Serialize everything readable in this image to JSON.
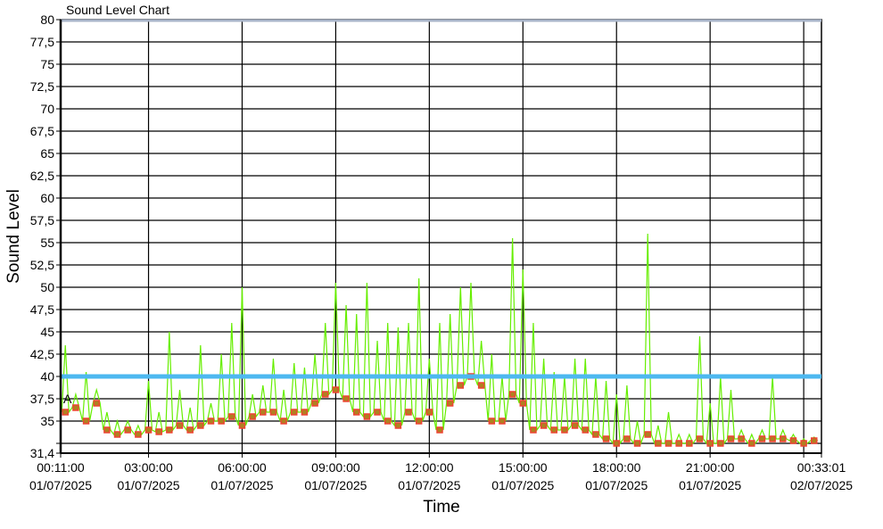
{
  "chart_data": {
    "type": "line",
    "title": "Sound Level Chart",
    "xlabel": "Time",
    "ylabel": "Sound Level",
    "ylim": [
      31.4,
      80
    ],
    "y_ticks": [
      "80",
      "77,5",
      "75",
      "72,5",
      "70",
      "67,5",
      "65",
      "62,5",
      "60",
      "57,5",
      "55",
      "52,5",
      "50",
      "47,5",
      "45",
      "42,5",
      "40",
      "37,5",
      "35",
      "31,4"
    ],
    "x_ticks": [
      {
        "time": "00:11:00",
        "date": "01/07/2025"
      },
      {
        "time": "03:00:00",
        "date": "01/07/2025"
      },
      {
        "time": "06:00:00",
        "date": "01/07/2025"
      },
      {
        "time": "09:00:00",
        "date": "01/07/2025"
      },
      {
        "time": "12:00:00",
        "date": "01/07/2025"
      },
      {
        "time": "15:00:00",
        "date": "01/07/2025"
      },
      {
        "time": "18:00:00",
        "date": "01/07/2025"
      },
      {
        "time": "21:00:00",
        "date": "01/07/2025"
      },
      {
        "time": "00:33:01",
        "date": "02/07/2025"
      }
    ],
    "grid": true,
    "threshold": {
      "value": 40,
      "color": "#4db8f0"
    },
    "upper_line": {
      "value": 80,
      "color": "#a8b4c8"
    },
    "annotation": {
      "text": "A",
      "time": "00:11",
      "value": 37
    },
    "colors": {
      "peak": "#66ee00",
      "level": "#ee4433",
      "level_fill": "#b08020"
    },
    "series": {
      "time": [
        "00:20",
        "00:40",
        "01:00",
        "01:20",
        "01:40",
        "02:00",
        "02:20",
        "02:40",
        "03:00",
        "03:20",
        "03:40",
        "04:00",
        "04:20",
        "04:40",
        "05:00",
        "05:20",
        "05:40",
        "06:00",
        "06:20",
        "06:40",
        "07:00",
        "07:20",
        "07:40",
        "08:00",
        "08:20",
        "08:40",
        "09:00",
        "09:20",
        "09:40",
        "10:00",
        "10:20",
        "10:40",
        "11:00",
        "11:20",
        "11:40",
        "12:00",
        "12:20",
        "12:40",
        "13:00",
        "13:20",
        "13:40",
        "14:00",
        "14:20",
        "14:40",
        "15:00",
        "15:20",
        "15:40",
        "16:00",
        "16:20",
        "16:40",
        "17:00",
        "17:20",
        "17:40",
        "18:00",
        "18:20",
        "18:40",
        "19:00",
        "19:20",
        "19:40",
        "20:00",
        "20:20",
        "20:40",
        "21:00",
        "21:20",
        "21:40",
        "22:00",
        "22:20",
        "22:40",
        "23:00",
        "23:20",
        "23:40",
        "00:00",
        "00:20"
      ],
      "level": [
        36,
        36.5,
        35,
        37,
        34,
        33.5,
        34,
        33.5,
        34,
        33.8,
        34,
        34.5,
        34,
        34.5,
        35,
        35,
        35.5,
        34.5,
        35.5,
        36,
        36,
        35,
        36,
        36,
        37,
        38,
        38.5,
        37.5,
        36,
        35.5,
        36,
        35,
        34.5,
        36,
        35,
        36,
        34,
        37,
        39,
        40,
        39,
        35,
        35,
        38,
        37,
        34,
        34.5,
        34,
        34,
        34.5,
        34,
        33.5,
        33,
        32.5,
        33,
        32.5,
        33.5,
        32.5,
        32.5,
        32.5,
        32.5,
        33,
        32.5,
        32.5,
        33,
        33,
        32.5,
        33,
        33,
        33,
        32.8,
        32.5,
        32.8
      ],
      "peak": [
        43.5,
        38,
        40.5,
        38.5,
        36,
        35,
        35,
        34.5,
        39.5,
        36,
        45,
        38.5,
        36.5,
        43.5,
        37,
        42.5,
        46,
        50,
        38,
        39,
        42,
        38.5,
        41.5,
        41,
        42.5,
        46,
        50.5,
        48,
        47,
        50.5,
        44,
        46,
        45.5,
        46,
        51,
        42,
        46,
        47,
        50,
        50.5,
        44,
        42.5,
        40,
        55.5,
        52,
        46,
        42,
        40.5,
        40,
        42,
        42,
        40,
        39.5,
        38,
        39,
        35,
        56,
        34.5,
        36,
        33.5,
        33.5,
        44.5,
        37,
        40,
        38.5,
        34,
        33.5,
        34,
        40,
        34,
        33.5,
        33,
        33.2
      ]
    }
  }
}
